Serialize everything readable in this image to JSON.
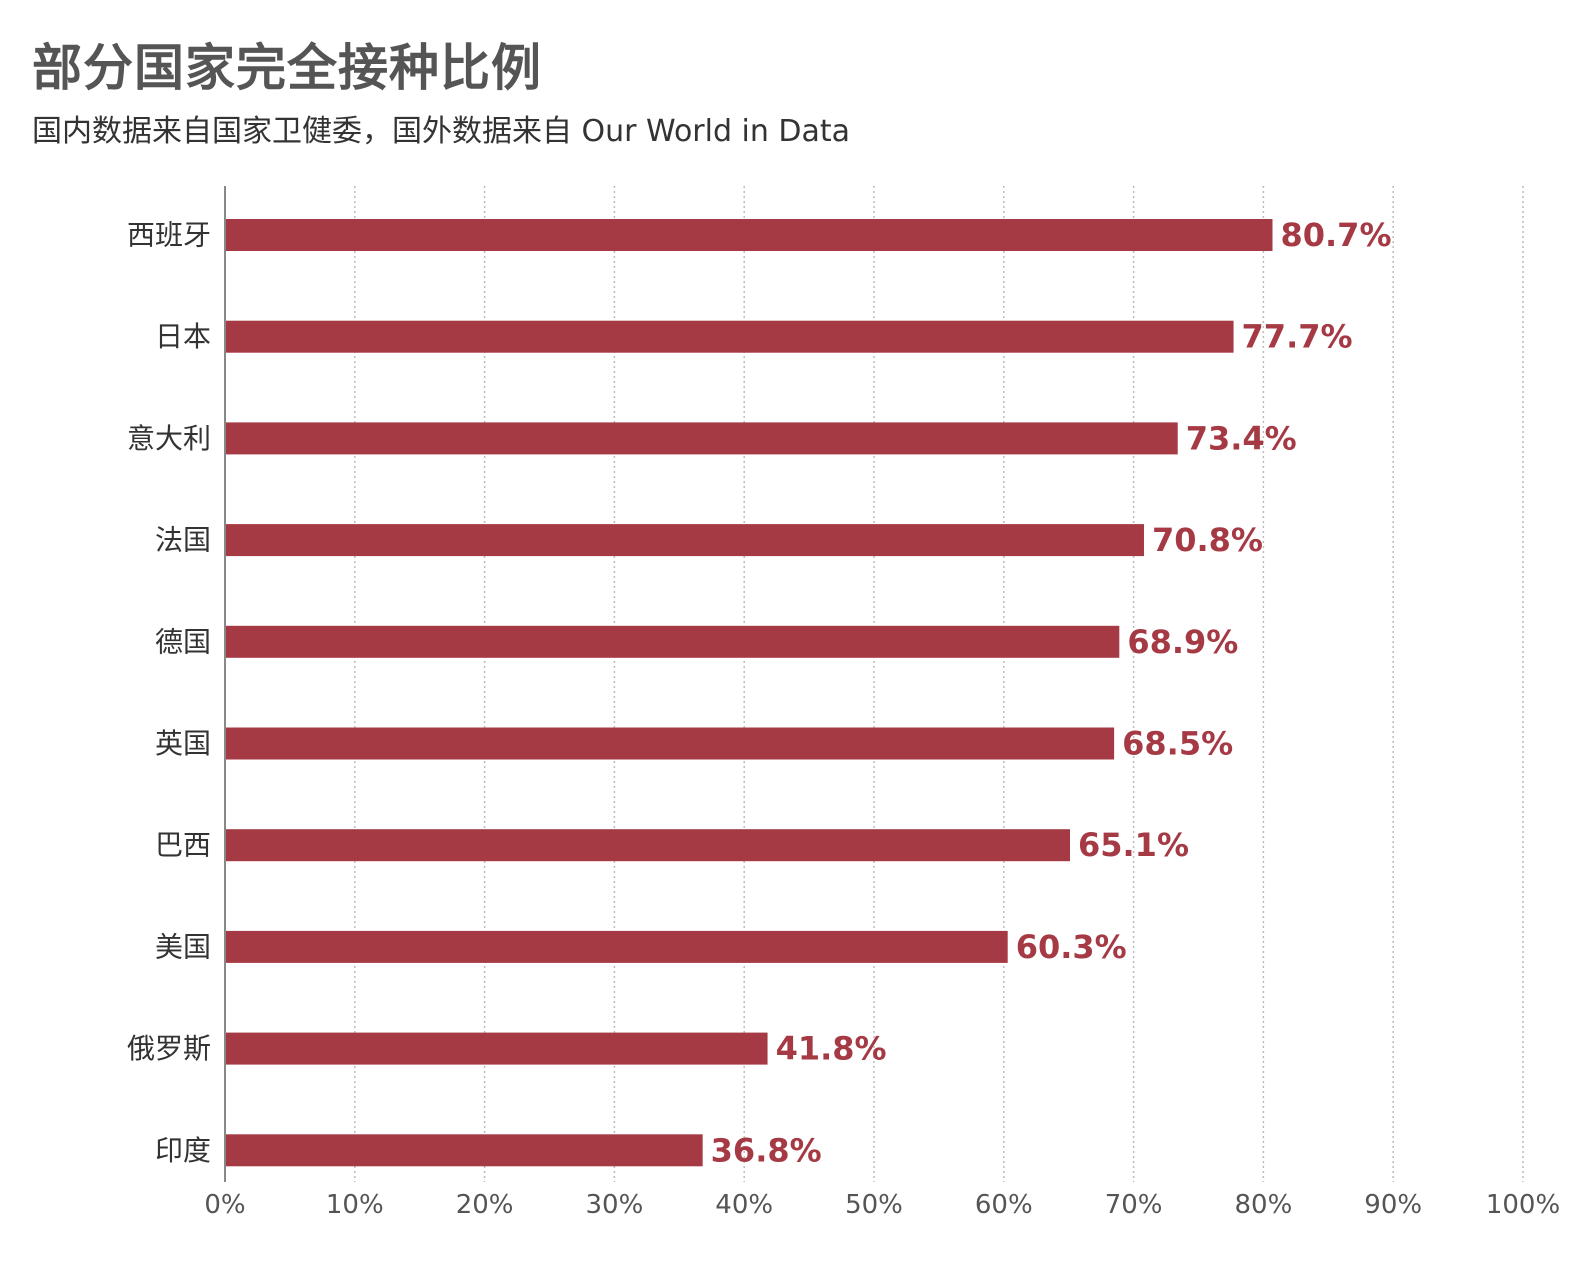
{
  "title": "部分国家完全接种比例",
  "subtitle": "国内数据来自国家卫健委，国外数据来自 Our World in Data",
  "colors": {
    "bar": "#a53a45",
    "grid": "#bbbbbb",
    "axis": "#888888"
  },
  "chart_data": {
    "type": "bar",
    "orientation": "horizontal",
    "categories": [
      "西班牙",
      "日本",
      "意大利",
      "法国",
      "德国",
      "英国",
      "巴西",
      "美国",
      "俄罗斯",
      "印度"
    ],
    "values": [
      80.7,
      77.7,
      73.4,
      70.8,
      68.9,
      68.5,
      65.1,
      60.3,
      41.8,
      36.8
    ],
    "value_labels": [
      "80.7%",
      "77.7%",
      "73.4%",
      "70.8%",
      "68.9%",
      "68.5%",
      "65.1%",
      "60.3%",
      "41.8%",
      "36.8%"
    ],
    "xlim": [
      0,
      100
    ],
    "x_ticks": [
      0,
      10,
      20,
      30,
      40,
      50,
      60,
      70,
      80,
      90,
      100
    ],
    "x_tick_labels": [
      "0%",
      "10%",
      "20%",
      "30%",
      "40%",
      "50%",
      "60%",
      "70%",
      "80%",
      "90%",
      "100%"
    ],
    "grid": true,
    "legend": false
  }
}
